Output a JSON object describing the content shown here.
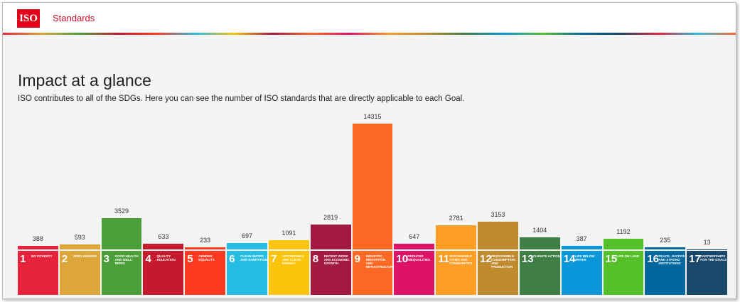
{
  "header": {
    "logo": "ISO",
    "nav": "Standards"
  },
  "title": "Impact at a glance",
  "subtitle": "ISO contributes to all of the SDGs. Here you can see the number of ISO standards that are directly applicable to each Goal.",
  "chart_data": {
    "type": "bar",
    "tile_numbers": [
      1,
      2,
      3,
      4,
      5,
      6,
      7,
      8,
      9,
      10,
      11,
      12,
      13,
      14,
      15,
      16,
      17
    ],
    "categories": [
      "NO POVERTY",
      "ZERO HUNGER",
      "GOOD HEALTH AND WELL-BEING",
      "QUALITY EDUCATION",
      "GENDER EQUALITY",
      "CLEAN WATER AND SANITATION",
      "AFFORDABLE AND CLEAN ENERGY",
      "DECENT WORK AND ECONOMIC GROWTH",
      "INDUSTRY, INNOVATION AND INFRASTRUCTURE",
      "REDUCED INEQUALITIES",
      "SUSTAINABLE CITIES AND COMMUNITIES",
      "RESPONSIBLE CONSUMPTION AND PRODUCTION",
      "CLIMATE ACTION",
      "LIFE BELOW WATER",
      "LIFE ON LAND",
      "PEACE, JUSTICE AND STRONG INSTITUTIONS",
      "PARTNERSHIPS FOR THE GOALS"
    ],
    "values": [
      388,
      593,
      3529,
      633,
      233,
      697,
      1091,
      2819,
      14315,
      647,
      2781,
      3153,
      1404,
      387,
      1192,
      235,
      13
    ],
    "colors": [
      "#e5243b",
      "#dda63a",
      "#4c9f38",
      "#c5192d",
      "#ff3a21",
      "#26bde2",
      "#fcc30b",
      "#a21942",
      "#fd6925",
      "#dd1367",
      "#fd9d24",
      "#bf8b2e",
      "#3f7e44",
      "#0a97d9",
      "#56c02b",
      "#00689d",
      "#19486a"
    ]
  }
}
